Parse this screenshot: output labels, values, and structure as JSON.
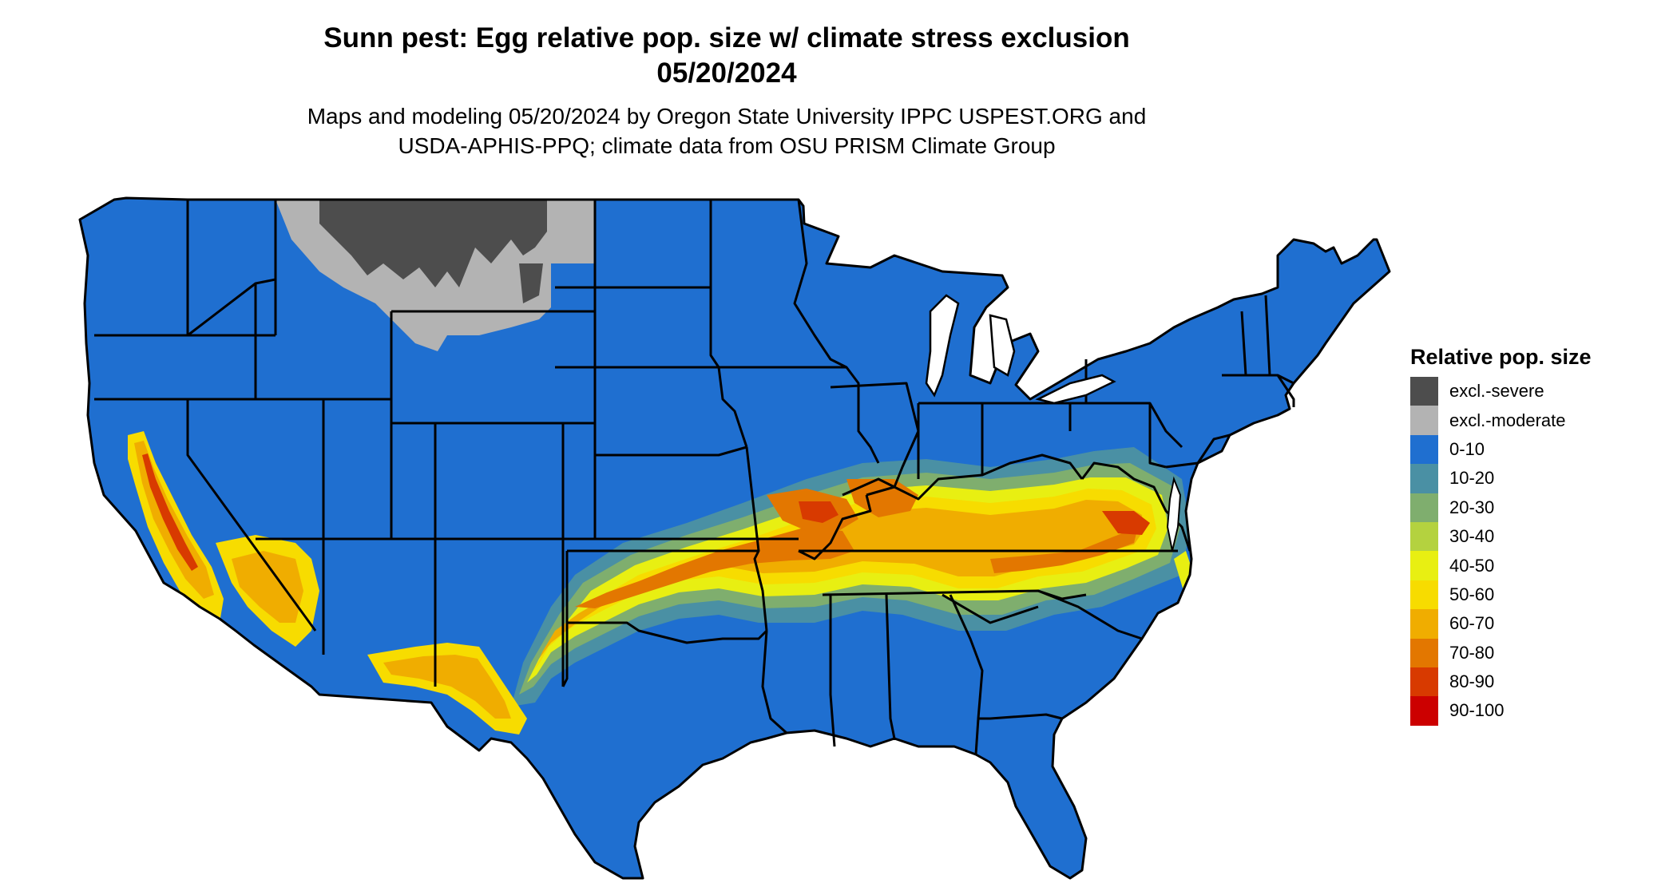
{
  "title": {
    "line1": "Sunn pest: Egg relative pop. size w/ climate stress exclusion",
    "line2": "05/20/2024"
  },
  "subtitle": {
    "line1": "Maps and modeling 05/20/2024 by Oregon State University IPPC USPEST.ORG and",
    "line2": "USDA-APHIS-PPQ; climate data from OSU PRISM Climate Group"
  },
  "map": {
    "region": "contiguous-united-states",
    "icon": "us-map-icon",
    "base_class": "0-10"
  },
  "legend": {
    "title": "Relative pop. size",
    "entries": [
      {
        "label": "excl.-severe",
        "color": "#4d4d4d"
      },
      {
        "label": "excl.-moderate",
        "color": "#b3b3b3"
      },
      {
        "label": "0-10",
        "color": "#1f6fd0"
      },
      {
        "label": "10-20",
        "color": "#4a90a4"
      },
      {
        "label": "20-30",
        "color": "#7fae6e"
      },
      {
        "label": "30-40",
        "color": "#b4d23f"
      },
      {
        "label": "40-50",
        "color": "#e8ef12"
      },
      {
        "label": "50-60",
        "color": "#f7dc00"
      },
      {
        "label": "60-70",
        "color": "#f0ad00"
      },
      {
        "label": "70-80",
        "color": "#e37700"
      },
      {
        "label": "80-90",
        "color": "#d83a00"
      },
      {
        "label": "90-100",
        "color": "#cc0000"
      }
    ]
  }
}
